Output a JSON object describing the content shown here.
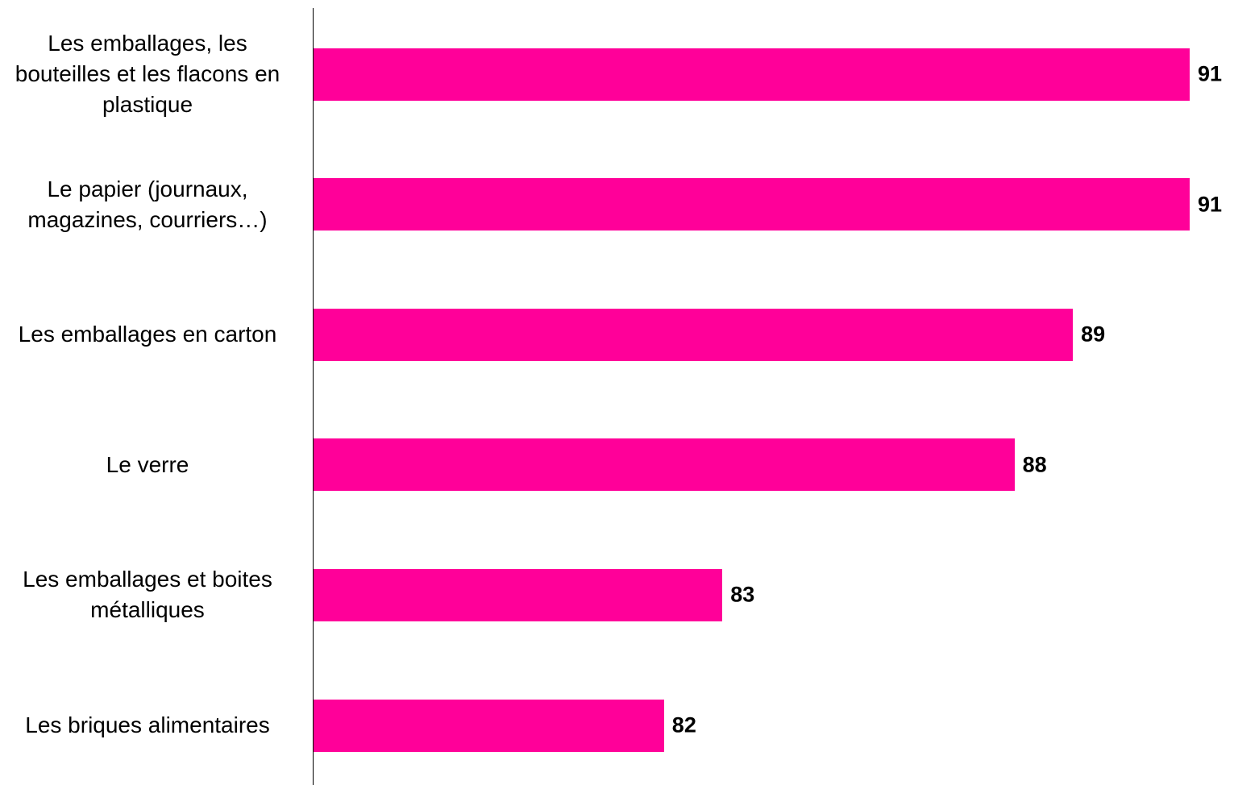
{
  "chart_data": {
    "type": "bar",
    "orientation": "horizontal",
    "categories": [
      "Les emballages, les bouteilles et les flacons en plastique",
      "Le papier (journaux, magazines, courriers…)",
      "Les emballages en carton",
      "Le verre",
      "Les emballages et boites métalliques",
      "Les briques alimentaires"
    ],
    "category_lines": [
      [
        "Les emballages, les",
        "bouteilles et les flacons en",
        "plastique"
      ],
      [
        "Le papier (journaux,",
        "magazines, courriers…)"
      ],
      [
        "Les emballages en carton"
      ],
      [
        "Le verre"
      ],
      [
        "Les emballages et boites",
        "métalliques"
      ],
      [
        "Les briques alimentaires"
      ]
    ],
    "values": [
      91,
      91,
      89,
      88,
      83,
      82
    ],
    "value_labels": [
      "91",
      "91",
      "89",
      "88",
      "83",
      "82"
    ],
    "xlim": [
      76,
      91
    ],
    "grid": false,
    "legend": "none",
    "bar_color": "#FF0099"
  }
}
